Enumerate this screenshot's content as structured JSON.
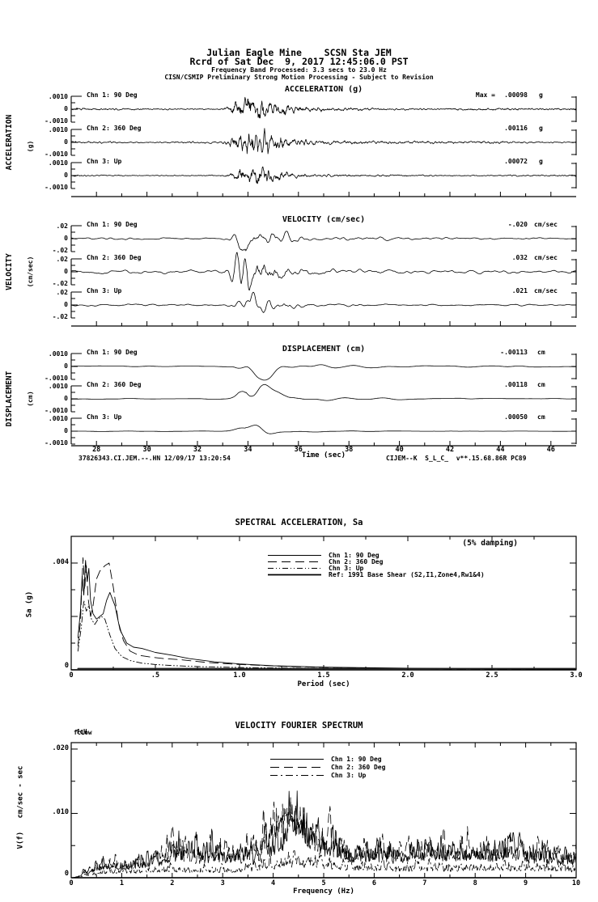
{
  "header": {
    "line1": "Julian Eagle Mine    SCSN Sta JEM",
    "line2": "Rcrd of Sat Dec  9, 2017 12:45:06.0 PST",
    "line3": "Frequency Band Processed: 3.3 secs to 23.0 Hz",
    "line4": "CISN/CSMIP Preliminary Strong Motion Processing - Subject to Revision"
  },
  "panels": [
    {
      "title": "ACCELERATION (g)",
      "side_label": "ACCELERATION",
      "side_unit": "(g)",
      "scale_top": ".0010",
      "scale_mid": "0",
      "scale_bot": "-.0010",
      "channels": [
        {
          "label": "Chn 1: 90 Deg",
          "max_prefix": "Max =",
          "max": ".00098",
          "unit": "g"
        },
        {
          "label": "Chn 2: 360 Deg",
          "max": ".00116",
          "unit": "g"
        },
        {
          "label": "Chn 3: Up",
          "max": ".00072",
          "unit": "g"
        }
      ]
    },
    {
      "title": "VELOCITY (cm/sec)",
      "side_label": "VELOCITY",
      "side_unit": "(cm/sec)",
      "scale_top": ".02",
      "scale_mid": "0",
      "scale_bot": "-.02",
      "channels": [
        {
          "label": "Chn 1: 90 Deg",
          "max": "-.020",
          "unit": "cm/sec"
        },
        {
          "label": "Chn 2: 360 Deg",
          "max": ".032",
          "unit": "cm/sec"
        },
        {
          "label": "Chn 3: Up",
          "max": ".021",
          "unit": "cm/sec"
        }
      ]
    },
    {
      "title": "DISPLACEMENT (cm)",
      "side_label": "DISPLACEMENT",
      "side_unit": "(cm)",
      "scale_top": ".0010",
      "scale_mid": "0",
      "scale_bot": "-.0010",
      "channels": [
        {
          "label": "Chn 1: 90 Deg",
          "max": "-.00113",
          "unit": "cm"
        },
        {
          "label": "Chn 2: 360 Deg",
          "max": ".00118",
          "unit": "cm"
        },
        {
          "label": "Chn 3: Up",
          "max": ".00050",
          "unit": "cm"
        }
      ]
    }
  ],
  "time_axis": {
    "ticks": [
      "28",
      "30",
      "32",
      "34",
      "36",
      "38",
      "40",
      "42",
      "44",
      "46"
    ],
    "label": "Time (sec)",
    "footer_left": "37826343.CI.JEM.--.HN 12/09/17 13:20:54",
    "footer_right": "CIJEM--K  S_L_C_  v**.15.68.86R PC89"
  },
  "sa_plot": {
    "title": "SPECTRAL ACCELERATION, Sa",
    "damping_note": "(5% damping)",
    "ylabel": "Sa (g)",
    "y_ticks": [
      ".004",
      "0"
    ],
    "x_ticks": [
      "0",
      ".5",
      "1.0",
      "1.5",
      "2.0",
      "2.5",
      "3.0"
    ],
    "xlabel": "Period (sec)",
    "legend": [
      {
        "label": "Chn 1: 90 Deg"
      },
      {
        "label": "Chn 2: 360 Deg"
      },
      {
        "label": "Chn 3: Up"
      },
      {
        "label": "Ref: 1991 Base Shear (S2,I1,Zone4,Rw1&4)"
      }
    ]
  },
  "fourier_plot": {
    "title": "VELOCITY FOURIER SPECTRUM",
    "fc_overprint": [
      "fcLow",
      "fcH"
    ],
    "ylabel": "V(f)   cm/sec - sec",
    "y_ticks": [
      ".020",
      ".010",
      "0"
    ],
    "x_ticks": [
      "0",
      "1",
      "2",
      "3",
      "4",
      "5",
      "6",
      "7",
      "8",
      "9",
      "10"
    ],
    "xlabel": "Frequency (Hz)",
    "legend": [
      {
        "label": "Chn 1: 90 Deg"
      },
      {
        "label": "Chn 2: 360 Deg"
      },
      {
        "label": "Chn 3: Up"
      }
    ]
  },
  "chart_data": [
    {
      "id": "acceleration",
      "type": "line",
      "title": "ACCELERATION (g)",
      "unit": "g",
      "x_range_sec": [
        27,
        47
      ],
      "x_ticks": [
        28,
        30,
        32,
        34,
        36,
        38,
        40,
        42,
        44,
        46
      ],
      "axis_scale": 0.001,
      "event_time_sec": 33.9,
      "channels": [
        {
          "name": "Chn 1: 90 Deg",
          "peak": 0.00098
        },
        {
          "name": "Chn 2: 360 Deg",
          "peak": 0.00116
        },
        {
          "name": "Chn 3: Up",
          "peak": 0.00072
        }
      ]
    },
    {
      "id": "velocity",
      "type": "line",
      "title": "VELOCITY (cm/sec)",
      "unit": "cm/sec",
      "x_range_sec": [
        27,
        47
      ],
      "x_ticks": [
        28,
        30,
        32,
        34,
        36,
        38,
        40,
        42,
        44,
        46
      ],
      "axis_scale": 0.02,
      "event_time_sec": 33.9,
      "channels": [
        {
          "name": "Chn 1: 90 Deg",
          "peak": -0.02
        },
        {
          "name": "Chn 2: 360 Deg",
          "peak": 0.032
        },
        {
          "name": "Chn 3: Up",
          "peak": 0.021
        }
      ]
    },
    {
      "id": "displacement",
      "type": "line",
      "title": "DISPLACEMENT (cm)",
      "unit": "cm",
      "x_range_sec": [
        27,
        47
      ],
      "x_ticks": [
        28,
        30,
        32,
        34,
        36,
        38,
        40,
        42,
        44,
        46
      ],
      "axis_scale": 0.001,
      "event_time_sec": 33.9,
      "channels": [
        {
          "name": "Chn 1: 90 Deg",
          "peak": -0.00113
        },
        {
          "name": "Chn 2: 360 Deg",
          "peak": 0.00118
        },
        {
          "name": "Chn 3: Up",
          "peak": 0.0005
        }
      ]
    },
    {
      "id": "spectral_acceleration",
      "type": "line",
      "title": "SPECTRAL ACCELERATION, Sa",
      "damping": "5%",
      "xlabel": "Period (sec)",
      "ylabel": "Sa (g)",
      "xlim": [
        0,
        3
      ],
      "ylim": [
        0,
        0.005
      ],
      "series": [
        {
          "name": "Chn 1: 90 Deg",
          "dash": "",
          "w": 0.9,
          "points": [
            [
              0.04,
              0.0012
            ],
            [
              0.055,
              0.0022
            ],
            [
              0.065,
              0.0035
            ],
            [
              0.075,
              0.0028
            ],
            [
              0.085,
              0.0041
            ],
            [
              0.095,
              0.0033
            ],
            [
              0.105,
              0.0038
            ],
            [
              0.115,
              0.0026
            ],
            [
              0.13,
              0.0021
            ],
            [
              0.15,
              0.0019
            ],
            [
              0.17,
              0.002
            ],
            [
              0.19,
              0.0021
            ],
            [
              0.21,
              0.0026
            ],
            [
              0.23,
              0.0029
            ],
            [
              0.26,
              0.0024
            ],
            [
              0.29,
              0.0015
            ],
            [
              0.33,
              0.001
            ],
            [
              0.37,
              0.00085
            ],
            [
              0.42,
              0.0008
            ],
            [
              0.5,
              0.00065
            ],
            [
              0.6,
              0.00055
            ],
            [
              0.7,
              0.00042
            ],
            [
              0.85,
              0.0003
            ],
            [
              1.0,
              0.00022
            ],
            [
              1.2,
              0.00015
            ],
            [
              1.5,
              0.0001
            ],
            [
              2.0,
              6e-05
            ],
            [
              2.5,
              4e-05
            ],
            [
              3.0,
              3e-05
            ]
          ]
        },
        {
          "name": "Chn 2: 360 Deg",
          "dash": "11,6",
          "w": 0.9,
          "points": [
            [
              0.04,
              0.0009
            ],
            [
              0.055,
              0.0018
            ],
            [
              0.07,
              0.0042
            ],
            [
              0.08,
              0.003
            ],
            [
              0.09,
              0.0039
            ],
            [
              0.1,
              0.0027
            ],
            [
              0.115,
              0.002
            ],
            [
              0.13,
              0.0024
            ],
            [
              0.15,
              0.0034
            ],
            [
              0.17,
              0.0037
            ],
            [
              0.2,
              0.0039
            ],
            [
              0.225,
              0.004
            ],
            [
              0.25,
              0.0031
            ],
            [
              0.28,
              0.0018
            ],
            [
              0.31,
              0.0011
            ],
            [
              0.35,
              0.0007
            ],
            [
              0.4,
              0.00055
            ],
            [
              0.47,
              0.00048
            ],
            [
              0.55,
              0.00042
            ],
            [
              0.65,
              0.00038
            ],
            [
              0.8,
              0.00028
            ],
            [
              1.0,
              0.0002
            ],
            [
              1.3,
              0.00012
            ],
            [
              1.7,
              7e-05
            ],
            [
              2.2,
              4e-05
            ],
            [
              3.0,
              2e-05
            ]
          ]
        },
        {
          "name": "Chn 3: Up",
          "dash": "7,3,1,3,1,3",
          "w": 0.9,
          "points": [
            [
              0.04,
              0.0007
            ],
            [
              0.06,
              0.0016
            ],
            [
              0.075,
              0.0026
            ],
            [
              0.09,
              0.0022
            ],
            [
              0.105,
              0.0024
            ],
            [
              0.12,
              0.0019
            ],
            [
              0.14,
              0.0017
            ],
            [
              0.16,
              0.0019
            ],
            [
              0.18,
              0.002
            ],
            [
              0.2,
              0.0019
            ],
            [
              0.23,
              0.0013
            ],
            [
              0.26,
              0.0008
            ],
            [
              0.3,
              0.0005
            ],
            [
              0.35,
              0.00035
            ],
            [
              0.42,
              0.00025
            ],
            [
              0.5,
              0.0002
            ],
            [
              0.6,
              0.00016
            ],
            [
              0.75,
              0.00012
            ],
            [
              0.9,
              0.0001
            ],
            [
              1.1,
              8e-05
            ],
            [
              1.4,
              6e-05
            ],
            [
              1.8,
              5e-05
            ],
            [
              2.4,
              4e-05
            ],
            [
              3.0,
              3e-05
            ]
          ]
        },
        {
          "name": "Ref: 1991 Base Shear (S2,I1,Zone4,Rw1&4)",
          "dash": "",
          "w": 1.6,
          "points": [
            [
              0.04,
              5e-05
            ],
            [
              3.0,
              5e-05
            ]
          ]
        }
      ]
    },
    {
      "id": "velocity_fourier_spectrum",
      "type": "line",
      "title": "VELOCITY FOURIER SPECTRUM",
      "xlabel": "Frequency (Hz)",
      "ylabel": "V(f) cm/sec - sec",
      "xlim": [
        0,
        10
      ],
      "ylim": [
        0,
        0.021
      ],
      "series": [
        {
          "name": "Chn 1: 90 Deg",
          "dash": "",
          "w": 0.8,
          "seed": 41,
          "envelope": [
            [
              0,
              0
            ],
            [
              0.3,
              0.001
            ],
            [
              0.7,
              0.0028
            ],
            [
              1.0,
              0.0022
            ],
            [
              1.4,
              0.003
            ],
            [
              1.8,
              0.0035
            ],
            [
              2.1,
              0.005
            ],
            [
              2.4,
              0.0062
            ],
            [
              2.7,
              0.0045
            ],
            [
              3.0,
              0.0042
            ],
            [
              3.3,
              0.005
            ],
            [
              3.6,
              0.0038
            ],
            [
              3.9,
              0.006
            ],
            [
              4.2,
              0.008
            ],
            [
              4.5,
              0.0135
            ],
            [
              4.7,
              0.009
            ],
            [
              5.0,
              0.0065
            ],
            [
              5.3,
              0.0055
            ],
            [
              5.6,
              0.0042
            ],
            [
              6.0,
              0.0048
            ],
            [
              6.4,
              0.0042
            ],
            [
              6.8,
              0.005
            ],
            [
              7.2,
              0.0052
            ],
            [
              7.6,
              0.0048
            ],
            [
              8.0,
              0.0052
            ],
            [
              8.4,
              0.0046
            ],
            [
              8.8,
              0.005
            ],
            [
              9.2,
              0.0042
            ],
            [
              9.6,
              0.0038
            ],
            [
              10,
              0.0035
            ]
          ]
        },
        {
          "name": "Chn 2: 360 Deg",
          "dash": "11,6",
          "w": 0.8,
          "seed": 42,
          "envelope": [
            [
              0,
              0
            ],
            [
              0.3,
              0.0012
            ],
            [
              0.8,
              0.0026
            ],
            [
              1.2,
              0.0024
            ],
            [
              1.6,
              0.003
            ],
            [
              2.0,
              0.0052
            ],
            [
              2.3,
              0.004
            ],
            [
              2.6,
              0.0036
            ],
            [
              3.0,
              0.0045
            ],
            [
              3.4,
              0.0038
            ],
            [
              3.8,
              0.0065
            ],
            [
              4.1,
              0.011
            ],
            [
              4.4,
              0.0125
            ],
            [
              4.7,
              0.008
            ],
            [
              5.0,
              0.0062
            ],
            [
              5.4,
              0.0048
            ],
            [
              5.8,
              0.0042
            ],
            [
              6.2,
              0.005
            ],
            [
              6.6,
              0.0044
            ],
            [
              7.0,
              0.0052
            ],
            [
              7.4,
              0.0046
            ],
            [
              7.8,
              0.005
            ],
            [
              8.2,
              0.0044
            ],
            [
              8.6,
              0.0048
            ],
            [
              9.0,
              0.004
            ],
            [
              9.4,
              0.0042
            ],
            [
              10,
              0.0036
            ]
          ]
        },
        {
          "name": "Chn 3: Up",
          "dash": "9,4,2,4",
          "w": 0.8,
          "seed": 43,
          "envelope": [
            [
              0,
              0
            ],
            [
              0.3,
              0.0008
            ],
            [
              0.8,
              0.0018
            ],
            [
              1.2,
              0.0016
            ],
            [
              1.6,
              0.002
            ],
            [
              2.0,
              0.0022
            ],
            [
              2.5,
              0.0018
            ],
            [
              3.0,
              0.002
            ],
            [
              3.5,
              0.0024
            ],
            [
              4.0,
              0.003
            ],
            [
              4.5,
              0.0042
            ],
            [
              5.0,
              0.0035
            ],
            [
              5.5,
              0.0028
            ],
            [
              6.0,
              0.0026
            ],
            [
              6.5,
              0.0024
            ],
            [
              7.0,
              0.0028
            ],
            [
              7.5,
              0.0024
            ],
            [
              8.0,
              0.0026
            ],
            [
              8.5,
              0.0028
            ],
            [
              9.0,
              0.0024
            ],
            [
              9.5,
              0.0026
            ],
            [
              10,
              0.0022
            ]
          ]
        }
      ]
    }
  ]
}
